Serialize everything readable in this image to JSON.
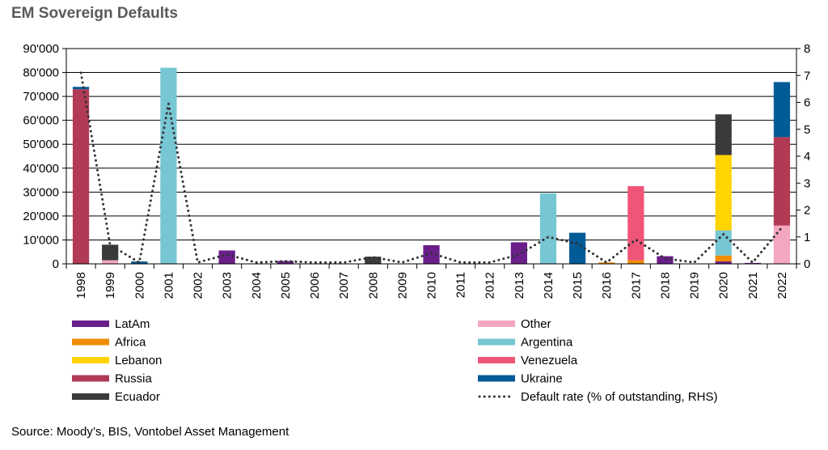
{
  "title": "EM Sovereign Defaults",
  "source": "Source: Moody’s, BIS, Vontobel Asset Management",
  "chart_data": {
    "type": "bar",
    "stacked": true,
    "categories": [
      "1998",
      "1999",
      "2000",
      "2001",
      "2002",
      "2003",
      "2004",
      "2005",
      "2006",
      "2007",
      "2008",
      "2009",
      "2010",
      "2011",
      "2012",
      "2013",
      "2014",
      "2015",
      "2016",
      "2017",
      "2018",
      "2019",
      "2020",
      "2021",
      "2022"
    ],
    "y_left": {
      "min": 0,
      "max": 90000,
      "ticks": [
        "0",
        "10'000",
        "20'000",
        "30'000",
        "40'000",
        "50'000",
        "60'000",
        "70'000",
        "80'000",
        "90'000"
      ],
      "tick_values": [
        0,
        10000,
        20000,
        30000,
        40000,
        50000,
        60000,
        70000,
        80000,
        90000
      ]
    },
    "y_right": {
      "min": 0,
      "max": 8,
      "ticks": [
        "0",
        "1",
        "2",
        "3",
        "4",
        "5",
        "6",
        "7",
        "8"
      ],
      "tick_values": [
        0,
        1,
        2,
        3,
        4,
        5,
        6,
        7,
        8
      ]
    },
    "grid": true,
    "legend_position": "bottom",
    "series": [
      {
        "name": "LatAm",
        "color": "#6a1e8a",
        "values": [
          0,
          0,
          0,
          0,
          0,
          5600,
          0,
          1200,
          0,
          0,
          0,
          0,
          7800,
          0,
          0,
          9000,
          0,
          0,
          0,
          0,
          3200,
          0,
          1000,
          400,
          0
        ]
      },
      {
        "name": "Africa",
        "color": "#ef8c00",
        "values": [
          0,
          0,
          0,
          0,
          0,
          0,
          0,
          0,
          0,
          0,
          0,
          0,
          0,
          0,
          0,
          0,
          0,
          0,
          600,
          1500,
          0,
          0,
          2500,
          0,
          0
        ]
      },
      {
        "name": "Other",
        "color": "#f4a7bf",
        "values": [
          0,
          1500,
          0,
          0,
          0,
          0,
          0,
          0,
          0,
          0,
          0,
          0,
          0,
          0,
          0,
          0,
          0,
          0,
          0,
          0,
          0,
          0,
          0,
          0,
          16000
        ]
      },
      {
        "name": "Argentina",
        "color": "#77c6d4",
        "values": [
          0,
          0,
          0,
          82000,
          0,
          0,
          0,
          0,
          0,
          0,
          0,
          0,
          0,
          0,
          0,
          0,
          29500,
          0,
          0,
          0,
          0,
          0,
          10500,
          0,
          0
        ]
      },
      {
        "name": "Lebanon",
        "color": "#ffd400",
        "values": [
          0,
          0,
          0,
          0,
          0,
          0,
          0,
          0,
          0,
          0,
          0,
          0,
          0,
          0,
          0,
          0,
          0,
          0,
          0,
          0,
          0,
          0,
          31500,
          0,
          0
        ]
      },
      {
        "name": "Venezuela",
        "color": "#ef5579",
        "values": [
          0,
          0,
          0,
          0,
          0,
          0,
          0,
          0,
          0,
          0,
          0,
          0,
          0,
          0,
          0,
          0,
          0,
          0,
          0,
          31000,
          0,
          0,
          0,
          0,
          0
        ]
      },
      {
        "name": "Russia",
        "color": "#b23a55",
        "values": [
          73000,
          0,
          0,
          0,
          0,
          0,
          0,
          0,
          0,
          0,
          0,
          0,
          0,
          0,
          0,
          0,
          0,
          0,
          0,
          0,
          0,
          0,
          0,
          0,
          37000
        ]
      },
      {
        "name": "Ukraine",
        "color": "#005b96",
        "values": [
          1000,
          0,
          1000,
          0,
          0,
          0,
          0,
          0,
          0,
          0,
          0,
          0,
          0,
          0,
          0,
          0,
          0,
          13000,
          0,
          0,
          0,
          0,
          0,
          0,
          23000
        ]
      },
      {
        "name": "Ecuador",
        "color": "#3a3a3a",
        "values": [
          0,
          6500,
          0,
          0,
          0,
          0,
          0,
          0,
          0,
          0,
          3000,
          0,
          0,
          0,
          0,
          0,
          0,
          0,
          0,
          0,
          0,
          0,
          17000,
          0,
          0
        ]
      }
    ],
    "line": {
      "name": "Default rate (% of outstanding, RHS)",
      "axis": "right",
      "color": "#333333",
      "values": [
        7.1,
        0.7,
        0.05,
        5.95,
        0.05,
        0.35,
        0.05,
        0.1,
        0.05,
        0.05,
        0.25,
        0.05,
        0.4,
        0.05,
        0.05,
        0.35,
        1.0,
        0.75,
        0.05,
        0.9,
        0.2,
        0.05,
        1.1,
        0.05,
        1.35
      ]
    },
    "legend": {
      "left": [
        "LatAm",
        "Africa",
        "Lebanon",
        "Russia",
        "Ecuador"
      ],
      "right": [
        "Other",
        "Argentina",
        "Venezuela",
        "Ukraine",
        "Default rate (% of outstanding, RHS)"
      ]
    }
  }
}
